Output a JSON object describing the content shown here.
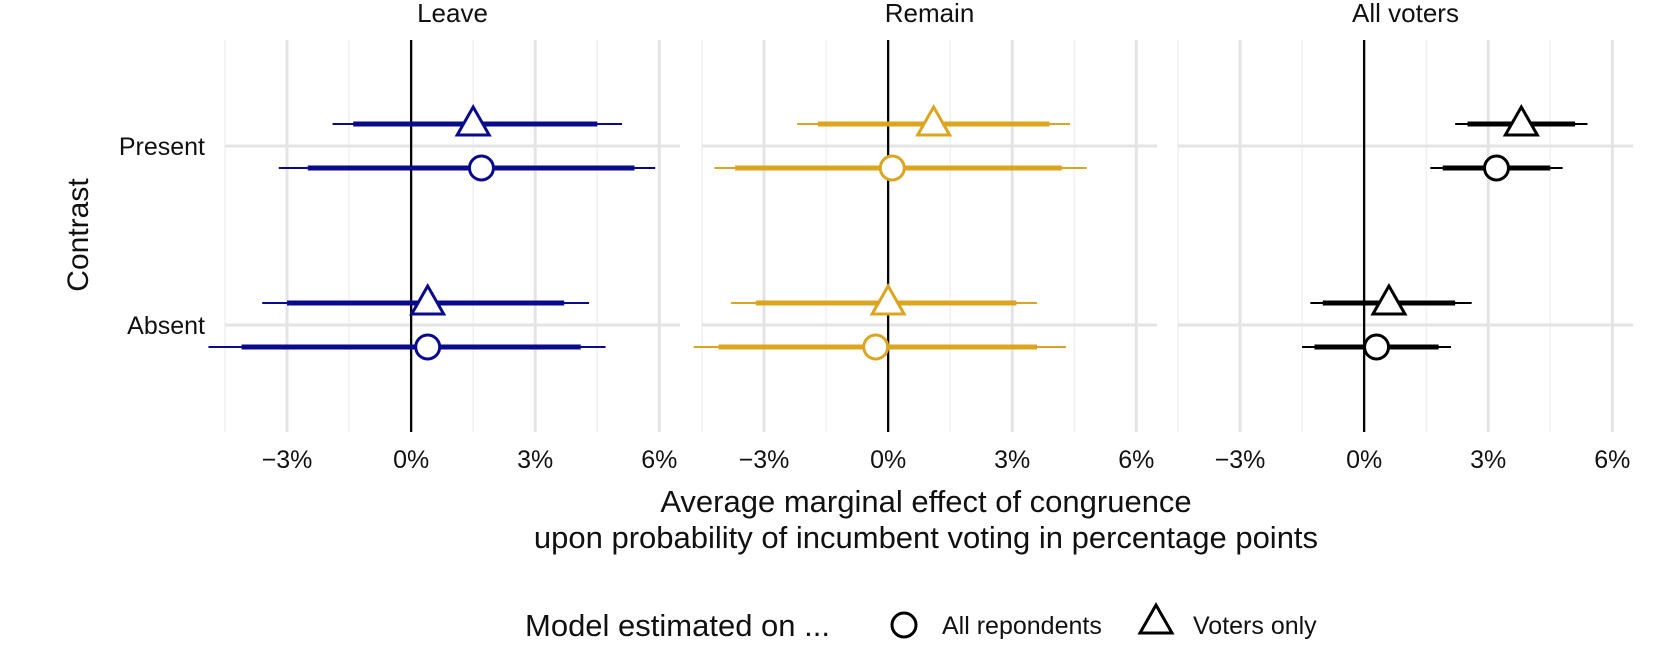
{
  "chart_data": {
    "type": "scatter",
    "subtype": "coefficient-plot",
    "title": "",
    "ylabel": "Contrast",
    "xlabel_lines": [
      "Average marginal effect of congruence",
      "upon probability of incumbent voting in percentage points"
    ],
    "xlim": [
      -4.5,
      6.5
    ],
    "x_ticks": [
      -3,
      0,
      3,
      6
    ],
    "x_tick_labels": [
      "−3%",
      "0%",
      "3%",
      "6%"
    ],
    "categories": [
      "Present",
      "Absent"
    ],
    "grid": true,
    "legend": {
      "placement": "bottom",
      "title": "Model estimated on ...",
      "items": [
        {
          "label": "All repondents",
          "shape": "circle"
        },
        {
          "label": "Voters only",
          "shape": "triangle"
        }
      ]
    },
    "panels": [
      {
        "name": "Leave",
        "color": "#0a0a8c",
        "points": [
          {
            "category": "Present",
            "model": "Voters only",
            "estimate": 1.5,
            "ci_inner": [
              -1.4,
              4.5
            ],
            "ci_outer": [
              -1.9,
              5.1
            ]
          },
          {
            "category": "Present",
            "model": "All repondents",
            "estimate": 1.7,
            "ci_inner": [
              -2.5,
              5.4
            ],
            "ci_outer": [
              -3.2,
              5.9
            ]
          },
          {
            "category": "Absent",
            "model": "Voters only",
            "estimate": 0.4,
            "ci_inner": [
              -3.0,
              3.7
            ],
            "ci_outer": [
              -3.6,
              4.3
            ]
          },
          {
            "category": "Absent",
            "model": "All repondents",
            "estimate": 0.4,
            "ci_inner": [
              -4.1,
              4.1
            ],
            "ci_outer": [
              -4.9,
              4.7
            ]
          }
        ]
      },
      {
        "name": "Remain",
        "color": "#dba520",
        "points": [
          {
            "category": "Present",
            "model": "Voters only",
            "estimate": 1.1,
            "ci_inner": [
              -1.7,
              3.9
            ],
            "ci_outer": [
              -2.2,
              4.4
            ]
          },
          {
            "category": "Present",
            "model": "All repondents",
            "estimate": 0.1,
            "ci_inner": [
              -3.7,
              4.2
            ],
            "ci_outer": [
              -4.2,
              4.8
            ]
          },
          {
            "category": "Absent",
            "model": "Voters only",
            "estimate": 0.0,
            "ci_inner": [
              -3.2,
              3.1
            ],
            "ci_outer": [
              -3.8,
              3.6
            ]
          },
          {
            "category": "Absent",
            "model": "All repondents",
            "estimate": -0.3,
            "ci_inner": [
              -4.1,
              3.6
            ],
            "ci_outer": [
              -4.7,
              4.3
            ]
          }
        ]
      },
      {
        "name": "All voters",
        "color": "#000000",
        "points": [
          {
            "category": "Present",
            "model": "Voters only",
            "estimate": 3.8,
            "ci_inner": [
              2.5,
              5.1
            ],
            "ci_outer": [
              2.2,
              5.4
            ]
          },
          {
            "category": "Present",
            "model": "All repondents",
            "estimate": 3.2,
            "ci_inner": [
              1.9,
              4.5
            ],
            "ci_outer": [
              1.6,
              4.8
            ]
          },
          {
            "category": "Absent",
            "model": "Voters only",
            "estimate": 0.6,
            "ci_inner": [
              -1.0,
              2.2
            ],
            "ci_outer": [
              -1.3,
              2.6
            ]
          },
          {
            "category": "Absent",
            "model": "All repondents",
            "estimate": 0.3,
            "ci_inner": [
              -1.2,
              1.8
            ],
            "ci_outer": [
              -1.5,
              2.1
            ]
          }
        ]
      }
    ]
  }
}
